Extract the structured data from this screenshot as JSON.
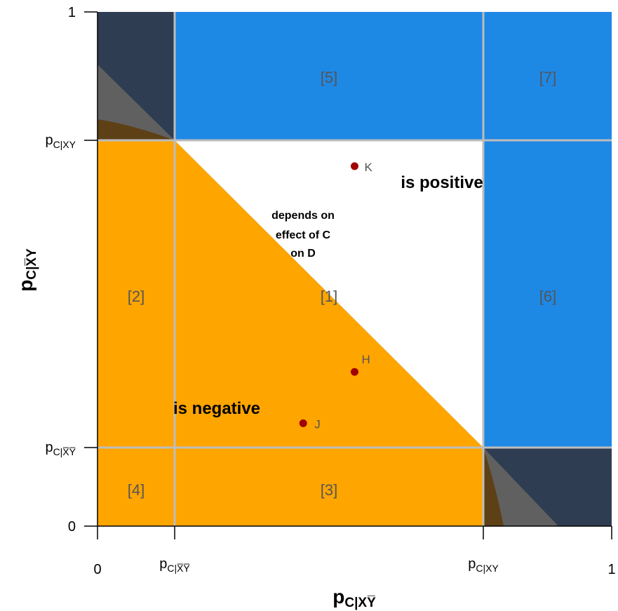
{
  "colors": {
    "negative": "#ffa500",
    "positive": "#1e88e5",
    "depends": "#ffffff",
    "dark_corner": "#2f3d52",
    "grey_wedge": "#606060",
    "brown_wedge": "#5e4016",
    "grid": "#bdbdbd",
    "point": "#a00000"
  },
  "axes": {
    "x_title_main": "p",
    "x_title_sub": "C|XY̅",
    "y_title_main": "p",
    "y_title_sub": "C|X̅Y",
    "x_ticks": [
      {
        "main": "0",
        "sub": ""
      },
      {
        "main": "p",
        "sub": "C|X̅Y̅"
      },
      {
        "main": "p",
        "sub": "C|XY"
      },
      {
        "main": "1",
        "sub": ""
      }
    ],
    "y_ticks": [
      {
        "main": "1",
        "sub": ""
      },
      {
        "main": "p",
        "sub": "C|XY"
      },
      {
        "main": "p",
        "sub": "C|X̅Y̅"
      },
      {
        "main": "0",
        "sub": ""
      }
    ]
  },
  "regions": {
    "r1": "[1]",
    "r2": "[2]",
    "r3": "[3]",
    "r4": "[4]",
    "r5": "[5]",
    "r6": "[6]",
    "r7": "[7]"
  },
  "labels": {
    "positive": "is positive",
    "negative": "is negative",
    "depends_line1": "depends on",
    "depends_line2": "effect of C",
    "depends_line3": "on D"
  },
  "points": [
    {
      "name": "K",
      "label": "K",
      "x": 0.5,
      "y": 0.7
    },
    {
      "name": "H",
      "label": "H",
      "x": 0.5,
      "y": 0.3
    },
    {
      "name": "J",
      "label": "J",
      "x": 0.4,
      "y": 0.2
    }
  ]
}
